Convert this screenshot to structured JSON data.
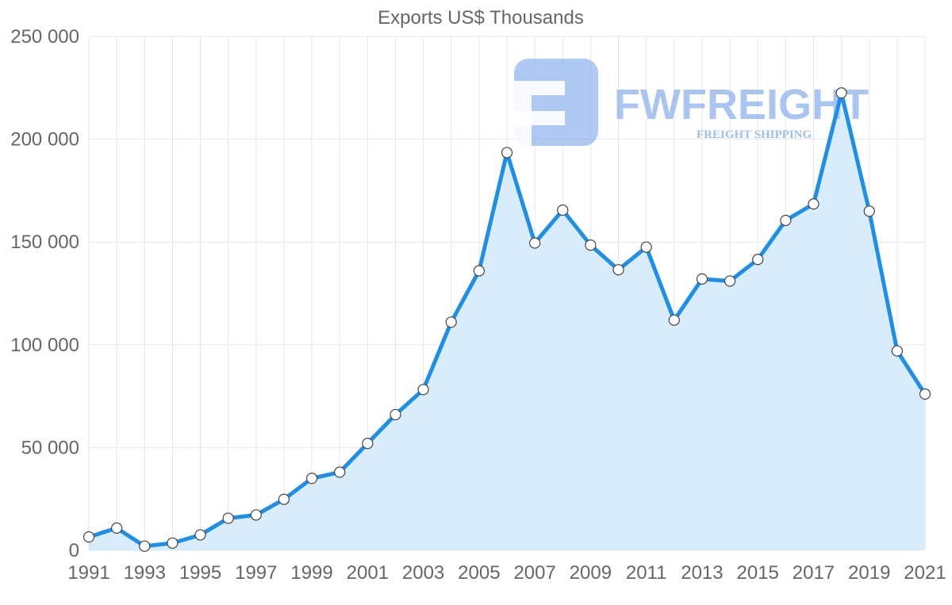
{
  "chart_data": {
    "type": "area",
    "title": "Exports US$ Thousands",
    "xlabel": "",
    "ylabel": "",
    "ylim": [
      0,
      250000
    ],
    "y_ticks": [
      0,
      50000,
      100000,
      150000,
      200000,
      250000
    ],
    "y_tick_labels": [
      "0",
      "50 000",
      "100 000",
      "150 000",
      "200 000",
      "250 000"
    ],
    "x_tick_labels": [
      "1991",
      "1993",
      "1995",
      "1997",
      "1999",
      "2001",
      "2003",
      "2005",
      "2007",
      "2009",
      "2011",
      "2013",
      "2015",
      "2017",
      "2019",
      "2021"
    ],
    "grid": true,
    "colors": {
      "line": "#1e8fe8",
      "fill": "#d9ecfc",
      "grid": "#e6e6e6",
      "text": "#666666"
    },
    "series": [
      {
        "name": "Exports US$ Thousands",
        "x": [
          1991,
          1992,
          1993,
          1994,
          1995,
          1996,
          1997,
          1998,
          1999,
          2000,
          2001,
          2002,
          2003,
          2004,
          2005,
          2006,
          2007,
          2008,
          2009,
          2010,
          2011,
          2012,
          2013,
          2014,
          2015,
          2016,
          2017,
          2018,
          2019,
          2020,
          2021
        ],
        "values": [
          6500,
          10800,
          2000,
          3500,
          7500,
          15600,
          17200,
          24800,
          35000,
          38000,
          52000,
          66000,
          78200,
          111000,
          136000,
          193500,
          149500,
          165500,
          148500,
          136500,
          147500,
          112000,
          132000,
          131000,
          141500,
          160500,
          168500,
          222500,
          165000,
          97000,
          76000
        ]
      }
    ]
  },
  "watermark": {
    "brand": "FWFREIGHT",
    "tagline": "FREIGHT SHIPPING"
  }
}
